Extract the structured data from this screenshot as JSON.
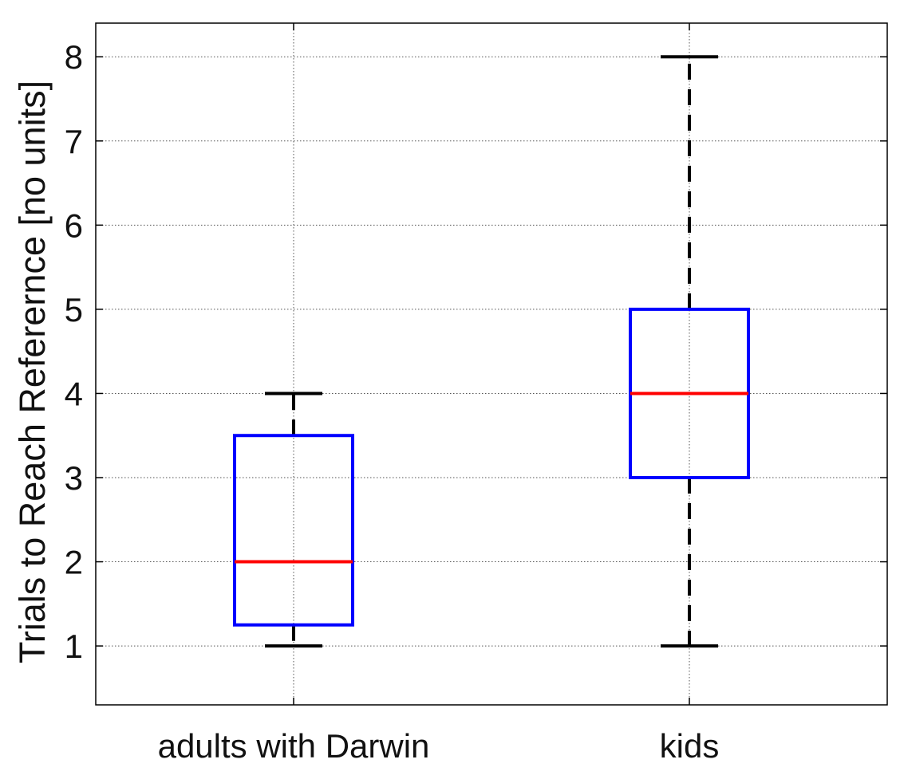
{
  "chart_data": {
    "type": "boxplot",
    "title": "",
    "xlabel": "",
    "ylabel": "Trials to Reach Referernce [no units]",
    "ylim": [
      0.3,
      8.4
    ],
    "yticks": [
      1,
      2,
      3,
      4,
      5,
      6,
      7,
      8
    ],
    "grid": true,
    "categories": [
      "adults with Darwin",
      "kids"
    ],
    "boxes": [
      {
        "category": "adults with Darwin",
        "min": 1,
        "q1": 1.25,
        "median": 2,
        "q3": 3.5,
        "max": 4
      },
      {
        "category": "kids",
        "min": 1,
        "q1": 3,
        "median": 4,
        "q3": 5,
        "max": 8
      }
    ],
    "colors": {
      "box": "#0000ff",
      "median": "#ff0000",
      "whisker": "#000000",
      "grid": "#555555"
    }
  }
}
